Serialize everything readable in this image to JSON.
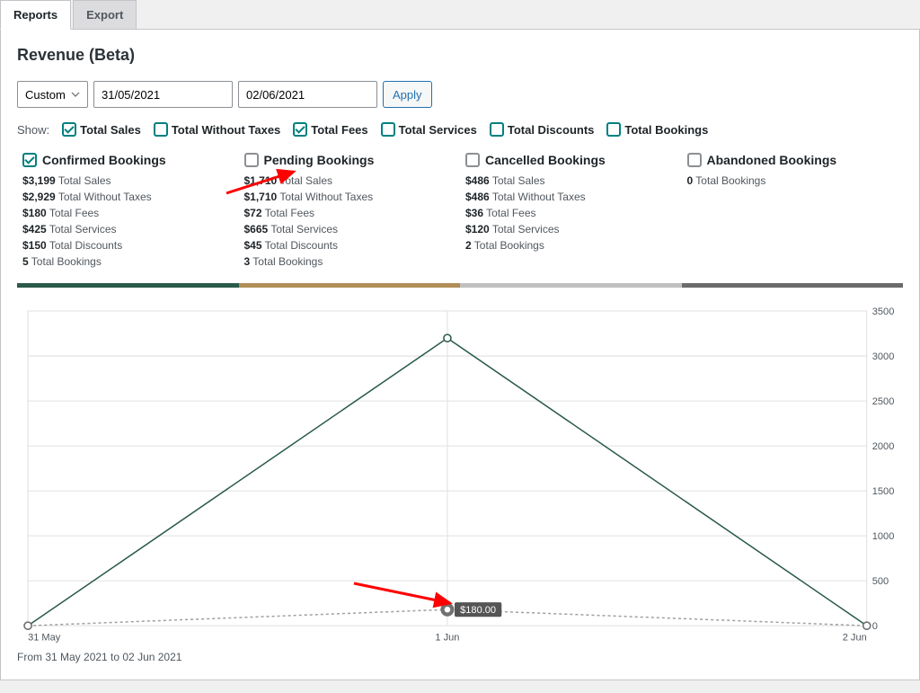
{
  "tabs": {
    "reports": "Reports",
    "export": "Export"
  },
  "page_title": "Revenue (Beta)",
  "controls": {
    "period": "Custom",
    "date_from": "31/05/2021",
    "date_to": "02/06/2021",
    "apply": "Apply"
  },
  "show": {
    "label": "Show:",
    "options": [
      {
        "label": "Total Sales",
        "checked": true
      },
      {
        "label": "Total Without Taxes",
        "checked": false
      },
      {
        "label": "Total Fees",
        "checked": true
      },
      {
        "label": "Total Services",
        "checked": false
      },
      {
        "label": "Total Discounts",
        "checked": false
      },
      {
        "label": "Total Bookings",
        "checked": false
      }
    ],
    "accent": "#008080"
  },
  "cards": [
    {
      "title": "Confirmed Bookings",
      "checked": true,
      "accent": "#2a5a4a",
      "stripe": "#2a5a4a",
      "stats": [
        {
          "value": "$3,199",
          "label": "Total Sales"
        },
        {
          "value": "$2,929",
          "label": "Total Without Taxes"
        },
        {
          "value": "$180",
          "label": "Total Fees"
        },
        {
          "value": "$425",
          "label": "Total Services"
        },
        {
          "value": "$150",
          "label": "Total Discounts"
        },
        {
          "value": "5",
          "label": "Total Bookings"
        }
      ]
    },
    {
      "title": "Pending Bookings",
      "checked": false,
      "accent": "#8c8f94",
      "stripe": "#b18d57",
      "stats": [
        {
          "value": "$1,710",
          "label": "Total Sales"
        },
        {
          "value": "$1,710",
          "label": "Total Without Taxes"
        },
        {
          "value": "$72",
          "label": "Total Fees"
        },
        {
          "value": "$665",
          "label": "Total Services"
        },
        {
          "value": "$45",
          "label": "Total Discounts"
        },
        {
          "value": "3",
          "label": "Total Bookings"
        }
      ]
    },
    {
      "title": "Cancelled Bookings",
      "checked": false,
      "accent": "#8c8f94",
      "stripe": "#c0c0c0",
      "stats": [
        {
          "value": "$486",
          "label": "Total Sales"
        },
        {
          "value": "$486",
          "label": "Total Without Taxes"
        },
        {
          "value": "$36",
          "label": "Total Fees"
        },
        {
          "value": "$120",
          "label": "Total Services"
        },
        {
          "value": "2",
          "label": "Total Bookings"
        }
      ]
    },
    {
      "title": "Abandoned Bookings",
      "checked": false,
      "accent": "#8c8f94",
      "stripe": "#6b6b6b",
      "stats": [
        {
          "value": "0",
          "label": "Total Bookings"
        }
      ]
    }
  ],
  "chart": {
    "type": "line",
    "x_labels": [
      "31 May",
      "1 Jun",
      "2 Jun"
    ],
    "ylim": [
      0,
      3500
    ],
    "ytick_step": 500,
    "series": [
      {
        "name": "Total Sales",
        "stroke": "#2a5a4a",
        "stroke_width": 1.5,
        "dash": "none",
        "marker_fill": "#ffffff",
        "marker_stroke": "#2a5a4a",
        "marker_r": 4,
        "values": [
          0,
          3199,
          0
        ]
      },
      {
        "name": "Total Fees",
        "stroke": "#a0a0a0",
        "stroke_width": 1.5,
        "dash": "3,3",
        "marker_fill": "#ffffff",
        "marker_stroke": "#707070",
        "marker_r": 4,
        "values": [
          0,
          180,
          0
        ]
      }
    ],
    "grid_color": "#e0e0e0",
    "axis_color": "#b0b0b0",
    "background": "#ffffff",
    "label_color": "#50575e",
    "label_fontsize": 11,
    "tooltip": {
      "x_index": 1,
      "series_index": 1,
      "text": "$180.00"
    },
    "caption": "From 31 May 2021 to 02 Jun 2021"
  },
  "annotations": {
    "arrow_color": "#ff0000"
  }
}
